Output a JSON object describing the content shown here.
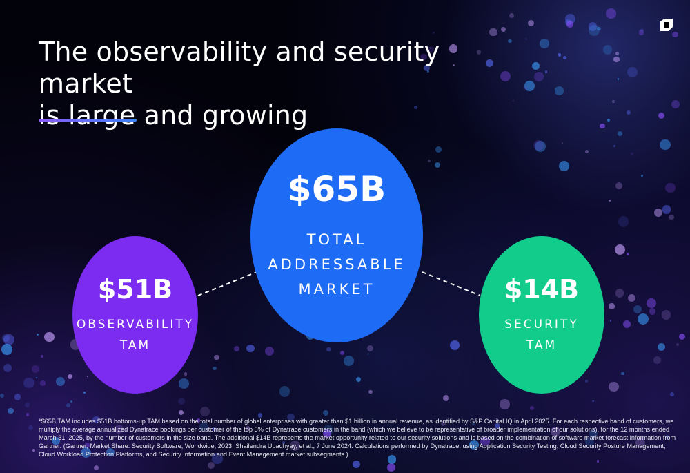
{
  "title": {
    "line1": "The observability and security market",
    "line2": "is large and growing"
  },
  "logo_icon": "dynatrace-logo-icon",
  "colors": {
    "total": "#1e6bf5",
    "observability": "#7b2cf0",
    "security": "#12cc8c",
    "accent_line": "#8b5cf6"
  },
  "total": {
    "amount": "$65B",
    "label_lines": [
      "TOTAL",
      "ADDRESSABLE",
      "MARKET"
    ]
  },
  "observability": {
    "amount": "$51B",
    "label_lines": [
      "OBSERVABILITY",
      "TAM"
    ]
  },
  "security": {
    "amount": "$14B",
    "label_lines": [
      "SECURITY",
      "TAM"
    ]
  },
  "footnote": "*$65B TAM includes $51B bottoms-up TAM based on the total number of global enterprises with greater than $1 billion in annual revenue, as identified by S&P Capital IQ in April 2025. For each respective band of customers, we multiply the average annualized Dynatrace bookings per customer of the top 5% of Dynatrace customers in the band (which we believe to be representative of broader implementation of our solutions), for the 12 months ended March 31, 2025, by the number of customers in the size band. The additional $14B  represents the market opportunity related to our security solutions and is based on the combination of software market forecast information from Gartner. (Gartner, Market Share: Security Software, Worldwide, 2023, Shailendra Upadhyay, et al., 7 June 2024. Calculations performed by Dynatrace, using Application Security Testing, Cloud Security Posture Management, Cloud Workload Protection Platforms, and Security Information and Event Management market subsegments.)"
}
